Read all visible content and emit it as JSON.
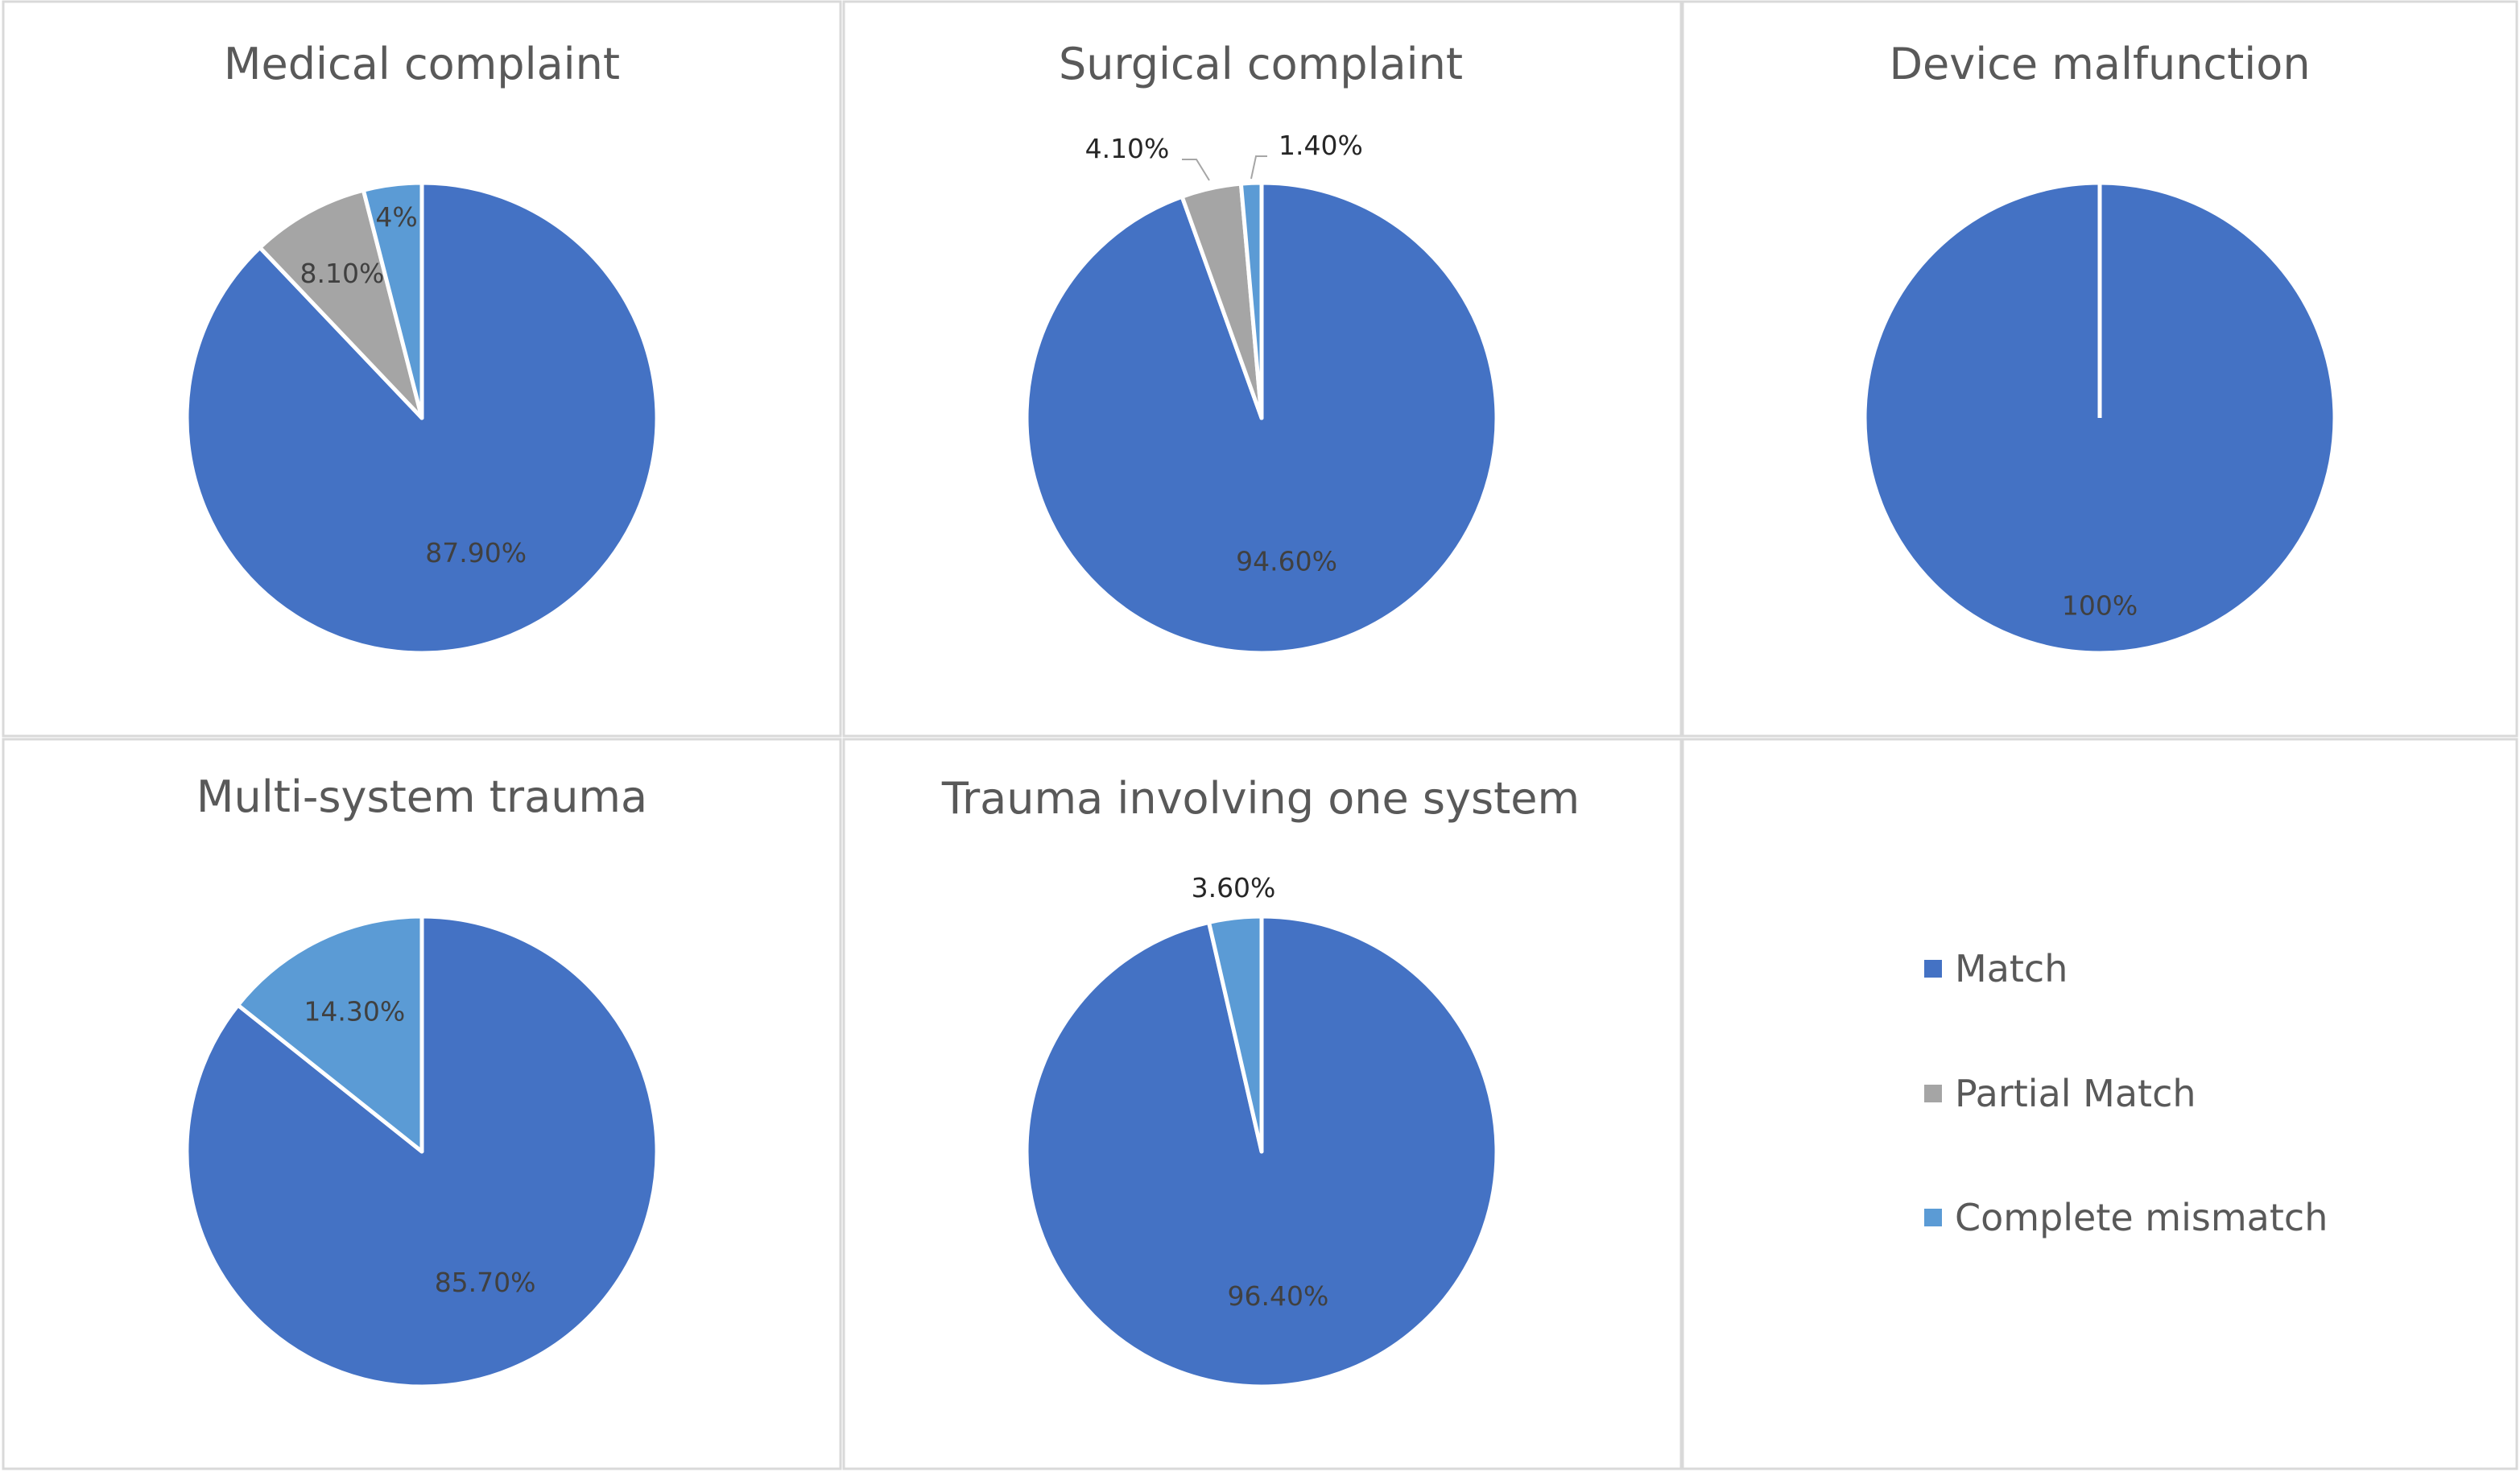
{
  "chart_data": [
    {
      "type": "pie",
      "title": "Medical complaint",
      "categories": [
        "Match",
        "Partial Match",
        "Complete mismatch"
      ],
      "values": [
        87.9,
        8.1,
        4.0
      ],
      "labels": [
        "87.90%",
        "8.10%",
        "4%"
      ]
    },
    {
      "type": "pie",
      "title": "Surgical complaint",
      "categories": [
        "Match",
        "Partial Match",
        "Complete mismatch"
      ],
      "values": [
        94.6,
        4.1,
        1.4
      ],
      "labels": [
        "94.60%",
        "4.10%",
        "1.40%"
      ]
    },
    {
      "type": "pie",
      "title": "Device malfunction",
      "categories": [
        "Match"
      ],
      "values": [
        100
      ],
      "labels": [
        "100%"
      ]
    },
    {
      "type": "pie",
      "title": "Multi-system trauma",
      "categories": [
        "Match",
        "Complete mismatch"
      ],
      "values": [
        85.7,
        14.3
      ],
      "labels": [
        "85.70%",
        "14.30%"
      ]
    },
    {
      "type": "pie",
      "title": "Trauma involving one system",
      "categories": [
        "Match",
        "Complete mismatch"
      ],
      "values": [
        96.4,
        3.6
      ],
      "labels": [
        "96.40%",
        "3.60%"
      ]
    }
  ],
  "legend": {
    "items": [
      {
        "label": "Match",
        "color": "#4472C4"
      },
      {
        "label": "Partial Match",
        "color": "#A5A5A5"
      },
      {
        "label": "Complete mismatch",
        "color": "#5B9BD5"
      }
    ]
  },
  "colors": {
    "Match": "#4472C4",
    "Partial Match": "#A5A5A5",
    "Complete mismatch": "#5B9BD5"
  }
}
